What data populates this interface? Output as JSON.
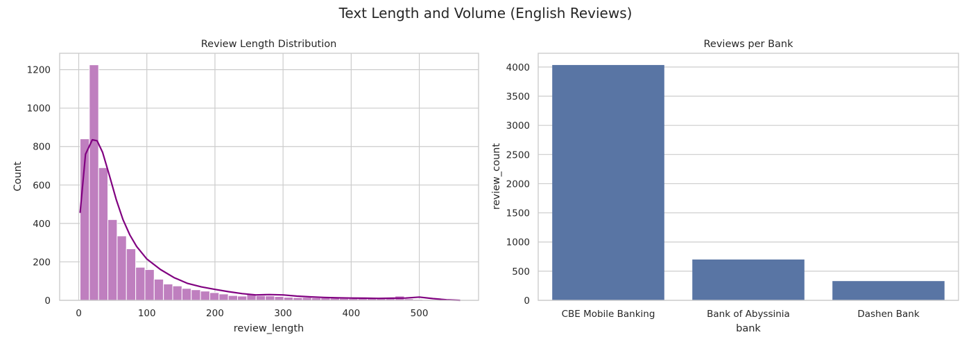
{
  "figure_title": "Text Length and Volume (English Reviews)",
  "chart_data": [
    {
      "type": "bar",
      "subtype": "histogram",
      "title": "Review Length Distribution",
      "xlabel": "review_length",
      "ylabel": "Count",
      "xlim": [
        -28,
        587
      ],
      "ylim": [
        0,
        1285
      ],
      "xticks": [
        0,
        100,
        200,
        300,
        400,
        500
      ],
      "yticks": [
        0,
        200,
        400,
        600,
        800,
        1000,
        1200
      ],
      "grid": true,
      "bar_color": "#bf7fbf",
      "kde_color": "#800080",
      "bin_width": 13.6,
      "bins_start": 2,
      "counts": [
        840,
        1225,
        690,
        420,
        335,
        268,
        172,
        160,
        110,
        85,
        75,
        62,
        55,
        48,
        40,
        33,
        25,
        22,
        32,
        24,
        23,
        20,
        16,
        14,
        15,
        13,
        13,
        12,
        10,
        10,
        10,
        10,
        12,
        10,
        22,
        8,
        5,
        3,
        3,
        2,
        1
      ],
      "kde_x": [
        2,
        10,
        20,
        27,
        35,
        45,
        55,
        65,
        75,
        85,
        100,
        120,
        140,
        160,
        180,
        200,
        220,
        240,
        260,
        280,
        300,
        320,
        340,
        360,
        380,
        400,
        420,
        440,
        460,
        480,
        500,
        520,
        540,
        560
      ],
      "kde_y": [
        455,
        760,
        835,
        830,
        770,
        650,
        525,
        420,
        340,
        280,
        215,
        160,
        118,
        88,
        70,
        57,
        45,
        35,
        28,
        30,
        28,
        22,
        18,
        15,
        13,
        12,
        11,
        10,
        11,
        12,
        17,
        9,
        3,
        0
      ]
    },
    {
      "type": "bar",
      "title": "Reviews per Bank",
      "xlabel": "bank",
      "ylabel": "review_count",
      "categories": [
        "CBE Mobile Banking",
        "Bank of Abyssinia",
        "Dashen Bank"
      ],
      "values": [
        4035,
        700,
        330
      ],
      "ylim": [
        0,
        4236
      ],
      "yticks": [
        0,
        500,
        1000,
        1500,
        2000,
        2500,
        3000,
        3500,
        4000
      ],
      "grid": true,
      "bar_color": "#5975a4"
    }
  ]
}
